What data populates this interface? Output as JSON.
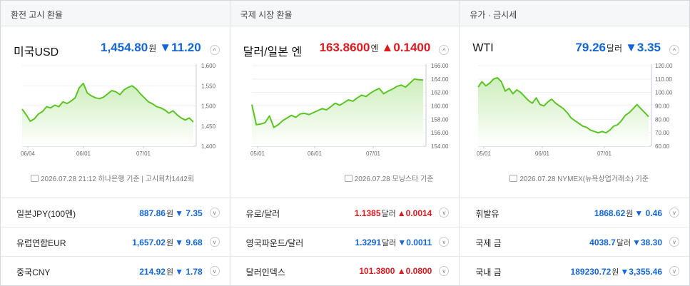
{
  "panels": [
    {
      "title": "환전 고시 환율",
      "main": {
        "name": "미국USD",
        "price": "1,454.80",
        "unit": "원",
        "arrow": "▼",
        "change": "11.20",
        "direction": "down",
        "toggle": "^"
      },
      "chart": {
        "ylabels": [
          "1,600",
          "1,550",
          "1,500",
          "1,450",
          "1,400"
        ],
        "xlabels": [
          "06/04",
          "06/01",
          "07/01"
        ],
        "ylim": [
          1400,
          1600
        ],
        "values": [
          1492,
          1478,
          1462,
          1468,
          1480,
          1486,
          1498,
          1495,
          1502,
          1498,
          1510,
          1506,
          1512,
          1520,
          1545,
          1556,
          1532,
          1525,
          1520,
          1518,
          1522,
          1530,
          1538,
          1535,
          1528,
          1540,
          1546,
          1550,
          1542,
          1530,
          1520,
          1510,
          1505,
          1498,
          1495,
          1490,
          1482,
          1488,
          1478,
          1470,
          1465,
          1470,
          1460
        ]
      },
      "source": "2026.07.28 21:12 하나은행 기준 | 고시회차1442회",
      "rows": [
        {
          "name": "일본JPY(100엔)",
          "price": "887.86",
          "unit": "원",
          "arrow": "▼",
          "change": "7.35",
          "direction": "down"
        },
        {
          "name": "유럽연합EUR",
          "price": "1,657.02",
          "unit": "원",
          "arrow": "▼",
          "change": "9.68",
          "direction": "down"
        },
        {
          "name": "중국CNY",
          "price": "214.92",
          "unit": "원",
          "arrow": "▼",
          "change": "1.78",
          "direction": "down"
        }
      ]
    },
    {
      "title": "국제 시장 환율",
      "main": {
        "name": "달러/일본 엔",
        "price": "163.8600",
        "unit": "엔",
        "arrow": "▲",
        "change": "0.1400",
        "direction": "up",
        "toggle": "^"
      },
      "chart": {
        "ylabels": [
          "166.00",
          "164.00",
          "162.00",
          "160.00",
          "158.00",
          "156.00",
          "154.00"
        ],
        "xlabels": [
          "05/01",
          "06/01",
          "07/01"
        ],
        "ylim": [
          154,
          166
        ],
        "values": [
          160.2,
          157.2,
          157.3,
          157.5,
          158.5,
          156.8,
          157.2,
          157.8,
          158.2,
          158.6,
          158.3,
          158.8,
          158.9,
          158.7,
          159.0,
          159.3,
          159.6,
          159.4,
          159.9,
          160.4,
          160.1,
          160.5,
          160.9,
          160.7,
          161.2,
          161.6,
          161.4,
          161.9,
          162.3,
          162.6,
          161.8,
          162.2,
          162.5,
          162.9,
          163.1,
          162.8,
          163.4,
          164.0,
          163.9,
          163.86
        ]
      },
      "source": "2026.07.28 모닝스타 기준",
      "rows": [
        {
          "name": "유로/달러",
          "price": "1.1385",
          "unit": "달러",
          "arrow": "▲",
          "change": "0.0014",
          "direction": "up"
        },
        {
          "name": "영국파운드/달러",
          "price": "1.3291",
          "unit": "달러",
          "arrow": "▼",
          "change": "0.0011",
          "direction": "down"
        },
        {
          "name": "달러인덱스",
          "price": "101.3800",
          "unit": "",
          "arrow": "▲",
          "change": "0.0800",
          "direction": "up"
        }
      ]
    },
    {
      "title": "유가 · 금시세",
      "main": {
        "name": "WTI",
        "price": "79.26",
        "unit": "달러",
        "arrow": "▼",
        "change": "3.35",
        "direction": "down",
        "toggle": "^"
      },
      "chart": {
        "ylabels": [
          "120.00",
          "110.00",
          "100.00",
          "90.00",
          "80.00",
          "70.00",
          "60.00"
        ],
        "xlabels": [
          "05/01",
          "06/01",
          "07/01"
        ],
        "ylim": [
          60,
          120
        ],
        "values": [
          104,
          108,
          105,
          107,
          110,
          111,
          108,
          101,
          103,
          99,
          102,
          100,
          97,
          94,
          92,
          96,
          91,
          90,
          93,
          95,
          92,
          90,
          88,
          85,
          81,
          79,
          77,
          75,
          74,
          72,
          71,
          70,
          71,
          70,
          72,
          75,
          76,
          79,
          83,
          85,
          88,
          91,
          88,
          85,
          82
        ]
      },
      "source": "2026.07.28 NYMEX(뉴욕상업거래소) 기준",
      "rows": [
        {
          "name": "휘발유",
          "price": "1868.62",
          "unit": "원",
          "arrow": "▼",
          "change": "0.46",
          "direction": "down"
        },
        {
          "name": "국제 금",
          "price": "4038.7",
          "unit": "달러",
          "arrow": "▼",
          "change": "38.30",
          "direction": "down"
        },
        {
          "name": "국내 금",
          "price": "189230.72",
          "unit": "원",
          "arrow": "▼",
          "change": "3,355.46",
          "direction": "down"
        }
      ]
    }
  ],
  "colors": {
    "line": "#5cc423",
    "fillTop": "#cdeebc",
    "fillBottom": "#ffffff",
    "up": "#e0191f",
    "down": "#1466d8"
  },
  "toggle_icon": "chevron-up-icon",
  "row_toggle_icon": "chevron-down-icon"
}
